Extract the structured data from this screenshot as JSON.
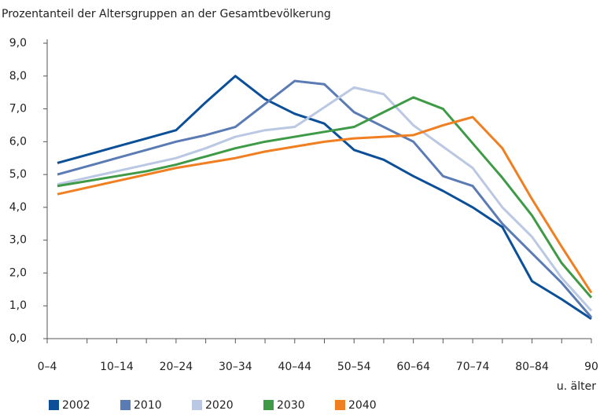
{
  "chart_data": {
    "type": "line",
    "title": "Prozentanteil der Altersgruppen an der Gesamtbevölkerung",
    "x_axis_note": "u. älter",
    "categories": [
      "0–4",
      null,
      "10–14",
      null,
      "20–24",
      null,
      "30–34",
      null,
      "40–44",
      null,
      "50–54",
      null,
      "60–64",
      null,
      "70–74",
      null,
      "80–84",
      null,
      "90"
    ],
    "series": [
      {
        "name": "2002",
        "color": "#0a4f97",
        "values": [
          5.35,
          5.6,
          5.85,
          6.1,
          6.35,
          7.2,
          8.0,
          7.3,
          6.85,
          6.55,
          5.75,
          5.45,
          4.95,
          4.5,
          4.0,
          3.4,
          1.75,
          1.2,
          0.6
        ]
      },
      {
        "name": "2010",
        "color": "#5b7bb5",
        "values": [
          5.0,
          5.25,
          5.5,
          5.75,
          6.0,
          6.2,
          6.45,
          7.15,
          7.85,
          7.75,
          6.9,
          6.45,
          6.0,
          4.95,
          4.65,
          3.5,
          2.6,
          1.7,
          0.65
        ]
      },
      {
        "name": "2020",
        "color": "#bac8e3",
        "values": [
          4.7,
          4.9,
          5.1,
          5.3,
          5.5,
          5.8,
          6.15,
          6.35,
          6.45,
          7.05,
          7.65,
          7.45,
          6.5,
          5.85,
          5.2,
          4.0,
          3.1,
          1.85,
          0.85
        ]
      },
      {
        "name": "2030",
        "color": "#3e9a46",
        "values": [
          4.65,
          4.8,
          4.95,
          5.1,
          5.3,
          5.55,
          5.8,
          6.0,
          6.15,
          6.3,
          6.45,
          6.9,
          7.35,
          7.0,
          5.95,
          4.9,
          3.75,
          2.3,
          1.25
        ]
      },
      {
        "name": "2040",
        "color": "#f07f22",
        "values": [
          4.4,
          4.6,
          4.8,
          5.0,
          5.2,
          5.35,
          5.5,
          5.7,
          5.85,
          6.0,
          6.1,
          6.15,
          6.2,
          6.5,
          6.75,
          5.8,
          4.25,
          2.8,
          1.4
        ]
      }
    ],
    "ylim": [
      0,
      9
    ],
    "yticks": [
      {
        "value": 0,
        "label": "0,0"
      },
      {
        "value": 1,
        "label": "1,0"
      },
      {
        "value": 2,
        "label": "2,0"
      },
      {
        "value": 3,
        "label": "3,0"
      },
      {
        "value": 4,
        "label": "4,0"
      },
      {
        "value": 5,
        "label": "5,0"
      },
      {
        "value": 6,
        "label": "6,0"
      },
      {
        "value": 7,
        "label": "7,0"
      },
      {
        "value": 8,
        "label": "8,0"
      },
      {
        "value": 9,
        "label": "9,0"
      }
    ],
    "grid": false,
    "legend": "bottom"
  }
}
